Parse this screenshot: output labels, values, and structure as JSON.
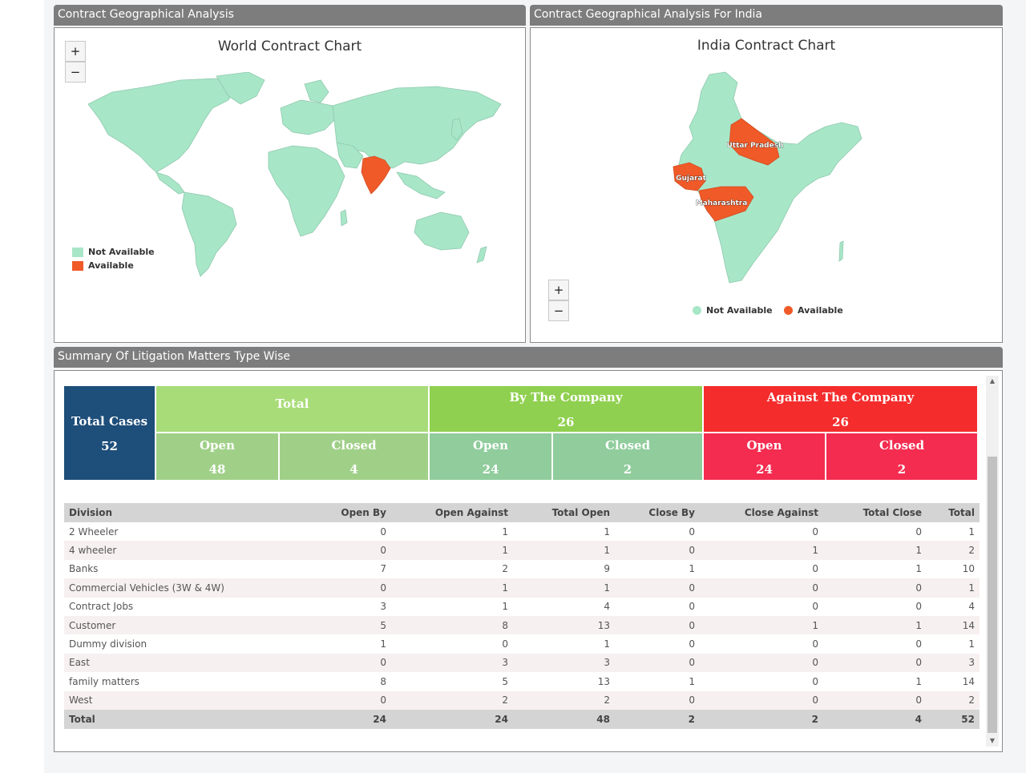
{
  "world_panel": {
    "title": "Contract Geographical Analysis",
    "chart_title": "World Contract Chart",
    "zoom_in": "+",
    "zoom_out": "−",
    "legend": [
      {
        "label": "Not Available",
        "color": "#a8e6c8"
      },
      {
        "label": "Available",
        "color": "#f05a28"
      }
    ]
  },
  "india_panel": {
    "title": "Contract Geographical Analysis For India",
    "chart_title": "India Contract Chart",
    "zoom_in": "+",
    "zoom_out": "−",
    "states": [
      "Uttar Pradesh",
      "Gujarat",
      "Maharashtra"
    ],
    "legend": [
      {
        "label": "Not Available",
        "color": "#a8e6c8"
      },
      {
        "label": "Available",
        "color": "#f05a28"
      }
    ]
  },
  "summary_panel": {
    "title": "Summary Of Litigation Matters Type Wise",
    "tiles": {
      "total_cases": {
        "label": "Total Cases",
        "value": "52",
        "color": "#1e4e7a"
      },
      "total": {
        "label": "Total",
        "color": "#a8dc78"
      },
      "total_open": {
        "label": "Open",
        "value": "48",
        "color": "#a0d088"
      },
      "total_closed": {
        "label": "Closed",
        "value": "4",
        "color": "#a0d088"
      },
      "by_company": {
        "label": "By The Company",
        "value": "26",
        "color": "#90d050"
      },
      "by_open": {
        "label": "Open",
        "value": "24",
        "color": "#90cc9c"
      },
      "by_closed": {
        "label": "Closed",
        "value": "2",
        "color": "#90cc9c"
      },
      "against_company": {
        "label": "Against The Company",
        "value": "26",
        "color": "#f42c2c"
      },
      "against_open": {
        "label": "Open",
        "value": "24",
        "color": "#f42c50"
      },
      "against_closed": {
        "label": "Closed",
        "value": "2",
        "color": "#f42c50"
      }
    },
    "table": {
      "headers": [
        "Division",
        "Open By",
        "Open Against",
        "Total Open",
        "Close By",
        "Close Against",
        "Total Close",
        "Total"
      ],
      "rows": [
        [
          "2 Wheeler",
          "0",
          "1",
          "1",
          "0",
          "0",
          "0",
          "1"
        ],
        [
          "4 wheeler",
          "0",
          "1",
          "1",
          "0",
          "1",
          "1",
          "2"
        ],
        [
          "Banks",
          "7",
          "2",
          "9",
          "1",
          "0",
          "1",
          "10"
        ],
        [
          "Commercial Vehicles (3W & 4W)",
          "0",
          "1",
          "1",
          "0",
          "0",
          "0",
          "1"
        ],
        [
          "Contract Jobs",
          "3",
          "1",
          "4",
          "0",
          "0",
          "0",
          "4"
        ],
        [
          "Customer",
          "5",
          "8",
          "13",
          "0",
          "1",
          "1",
          "14"
        ],
        [
          "Dummy division",
          "1",
          "0",
          "1",
          "0",
          "0",
          "0",
          "1"
        ],
        [
          "East",
          "0",
          "3",
          "3",
          "0",
          "0",
          "0",
          "3"
        ],
        [
          "family matters",
          "8",
          "5",
          "13",
          "1",
          "0",
          "1",
          "14"
        ],
        [
          "West",
          "0",
          "2",
          "2",
          "0",
          "0",
          "0",
          "2"
        ]
      ],
      "total_row": [
        "Total",
        "24",
        "24",
        "48",
        "2",
        "2",
        "4",
        "52"
      ]
    }
  }
}
